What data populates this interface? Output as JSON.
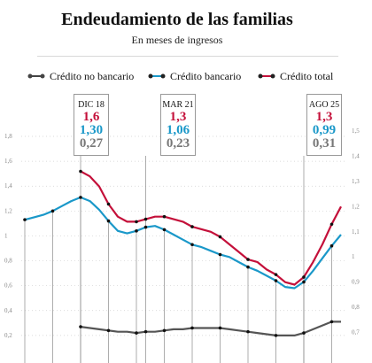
{
  "header": {
    "title": "Endeudamiento de las familias",
    "subtitle": "En meses de ingresos"
  },
  "legend": [
    {
      "label": "Crédito no bancario",
      "color": "#444444"
    },
    {
      "label": "Crédito bancario",
      "color": "#1a98c9"
    },
    {
      "label": "Crédito total",
      "color": "#c4103a"
    }
  ],
  "callouts": [
    {
      "date": "DIC 18",
      "total": "1,6",
      "bancario": "1,30",
      "no_bancario": "0,27"
    },
    {
      "date": "MAR 21",
      "total": "1,3",
      "bancario": "1,06",
      "no_bancario": "0,23"
    },
    {
      "date": "AGO 25",
      "total": "1,3",
      "bancario": "0,99",
      "no_bancario": "0,31"
    }
  ],
  "colors": {
    "total": "#c4103a",
    "bancario": "#1a98c9",
    "no_bancario": "#555555",
    "grid": "#cfcfcf"
  },
  "chart_data": {
    "type": "line",
    "x": [
      0,
      1,
      2,
      3,
      4,
      5,
      6,
      7,
      8,
      9,
      10,
      11,
      12,
      13,
      14,
      15,
      16,
      17,
      18,
      19,
      20,
      21,
      22,
      23,
      24,
      25,
      26,
      27,
      28,
      29,
      30,
      31,
      32,
      33,
      34
    ],
    "left_axis": {
      "ticks": [
        "0,2",
        "0,4",
        "0,6",
        "0,8",
        "1",
        "1,2",
        "1,4",
        "1,6",
        "1,8"
      ],
      "ylim": [
        0.0,
        1.8
      ]
    },
    "right_axis": {
      "ticks": [
        "0,7",
        "0,8",
        "0,9",
        "1",
        "1,1",
        "1,2",
        "1,3",
        "1,4",
        "1,5"
      ],
      "ylim": [
        0.6,
        1.5
      ]
    },
    "series": [
      {
        "name": "Crédito bancario",
        "axis": "left",
        "values": [
          1.13,
          1.15,
          1.17,
          1.2,
          1.24,
          1.28,
          1.31,
          1.28,
          1.21,
          1.12,
          1.04,
          1.02,
          1.04,
          1.07,
          1.08,
          1.05,
          1.01,
          0.97,
          0.93,
          0.91,
          0.88,
          0.85,
          0.83,
          0.79,
          0.75,
          0.72,
          0.68,
          0.64,
          0.59,
          0.58,
          0.63,
          0.72,
          0.82,
          0.92,
          1.01
        ]
      },
      {
        "name": "Crédito total",
        "axis": "right",
        "values": [
          null,
          null,
          null,
          null,
          null,
          null,
          1.34,
          1.32,
          1.28,
          1.21,
          1.16,
          1.14,
          1.14,
          1.15,
          1.16,
          1.16,
          1.15,
          1.14,
          1.12,
          1.11,
          1.1,
          1.08,
          1.05,
          1.02,
          0.99,
          0.98,
          0.95,
          0.93,
          0.9,
          0.89,
          0.92,
          0.98,
          1.05,
          1.13,
          1.2
        ]
      },
      {
        "name": "Crédito no bancario",
        "axis": "left",
        "values": [
          null,
          null,
          null,
          null,
          null,
          null,
          0.27,
          0.26,
          0.25,
          0.24,
          0.23,
          0.23,
          0.22,
          0.23,
          0.23,
          0.24,
          0.25,
          0.25,
          0.26,
          0.26,
          0.26,
          0.26,
          0.25,
          0.24,
          0.23,
          0.22,
          0.21,
          0.2,
          0.2,
          0.2,
          0.22,
          0.25,
          0.28,
          0.31,
          0.31
        ]
      }
    ],
    "marker_indices": [
      0,
      3,
      6,
      9,
      12,
      15,
      18,
      21,
      24,
      27,
      30,
      33
    ],
    "highlight_indices": [
      6,
      13,
      30
    ]
  }
}
